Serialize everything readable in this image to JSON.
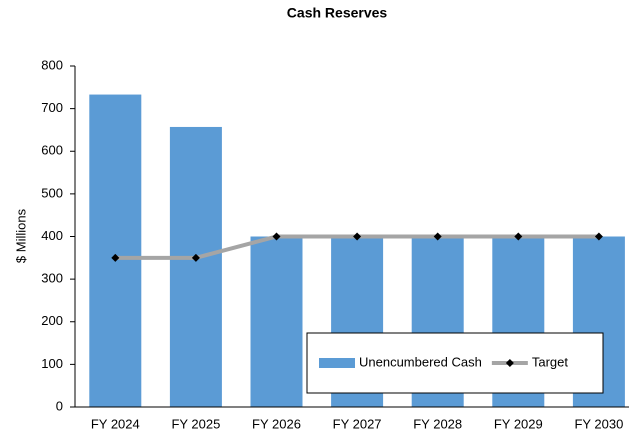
{
  "chart_data": {
    "type": "bar",
    "title": "Cash Reserves",
    "y_label": "$ Millions",
    "categories": [
      "FY 2024",
      "FY 2025",
      "FY 2026",
      "FY 2027",
      "FY 2028",
      "FY 2029",
      "FY 2030"
    ],
    "series": [
      {
        "name": "Unencumbered Cash",
        "type": "bar",
        "color": "#5b9bd5",
        "values": [
          733,
          657,
          400,
          400,
          400,
          400,
          400
        ]
      },
      {
        "name": "Target",
        "type": "line",
        "color": "#a5a5a5",
        "marker_color": "#000000",
        "values": [
          350,
          350,
          400,
          400,
          400,
          400,
          400
        ]
      }
    ],
    "ylim": [
      0,
      800
    ],
    "yticks": [
      0,
      100,
      200,
      300,
      400,
      500,
      600,
      700,
      800
    ],
    "legend": "lower right"
  }
}
